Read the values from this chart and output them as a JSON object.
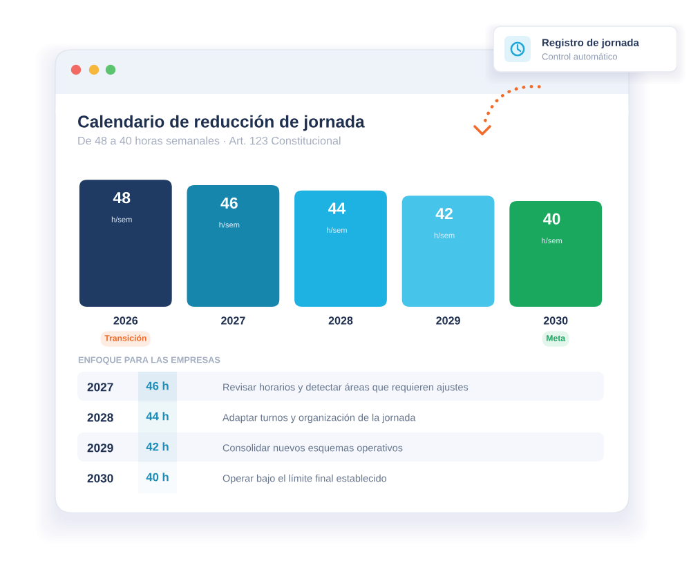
{
  "chart_data": [
    {
      "type": "other",
      "title": "Registro de jornada",
      "subtitle": "Control automático"
    },
    {
      "type": "bar",
      "title": "Calendario de reducción de jornada",
      "subtitle": "De 48 a 40 horas semanales · Art. 123 Constitucional",
      "categories": [
        "2026",
        "2027",
        "2028",
        "2029",
        "2030"
      ],
      "values": [
        48,
        46,
        44,
        42,
        40
      ],
      "colors": [
        "#1f3b63",
        "#1686ad",
        "#1db2e2",
        "#47c4ea",
        "#19a85e"
      ],
      "value_labels": [
        "48\nh/sem",
        "46\nh/sem",
        "44\nh/sem",
        "42\nh/sem",
        "40\nh/sem"
      ],
      "annotations": [
        "Transición",
        "Meta"
      ]
    },
    {
      "type": "heatmap",
      "title": "ENFOQUE PARA LAS EMPRESAS",
      "categories": [
        null
      ],
      "y_categories": [
        "2027",
        "2028",
        "2029",
        "2030"
      ],
      "y2_categories": [
        "Revisar horarios y detectar áreas que requieren ajustes",
        "Adaptar turnos y organización de la jornada",
        "Consolidar nuevos esquemas operativos",
        "Operar bajo el límite final establecido"
      ],
      "cells": [
        [
          46
        ],
        [
          44
        ],
        [
          42
        ],
        [
          40
        ]
      ],
      "cell_labels": [
        [
          "46 h"
        ],
        [
          "44 h"
        ],
        [
          "42 h"
        ],
        [
          "40 h"
        ]
      ]
    }
  ]
}
